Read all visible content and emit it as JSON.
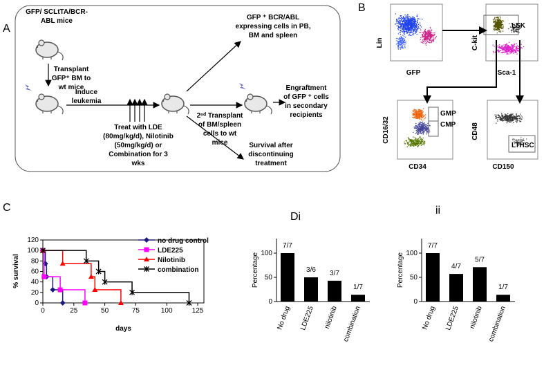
{
  "panel_a": {
    "label": "A",
    "mice": [
      "GFP/ SCLtTA/BCR-",
      "ABL mice"
    ],
    "transplant": [
      "Transplant",
      "GFP⁺ BM to",
      "wt mice"
    ],
    "induce": [
      "Induce",
      "leukemia"
    ],
    "treatment": [
      "Treat with LDE",
      "(80mg/kg/d), Nilotinib",
      "(50mg/kg/d) or",
      "Combination for 3",
      "wks"
    ],
    "expressing": [
      "GFP ⁺ BCR/ABL",
      "expressing cells in PB,",
      "BM and spleen"
    ],
    "second_transplant": [
      "2ⁿᵈ Transplant",
      "of BM/spleen",
      "cells to wt",
      "mice"
    ],
    "engraftment": [
      "Engraftment",
      "of GFP ⁺ cells",
      "in secondary",
      "recipients"
    ],
    "survival": [
      "Survival after",
      "discontinuing",
      "treatment"
    ]
  },
  "panel_b": {
    "label": "B",
    "plots": [
      {
        "y_label": "Lin",
        "x_label": "GFP"
      },
      {
        "y_label": "C-kit",
        "x_label": "Sca-1",
        "gates": [
          "LSK"
        ]
      },
      {
        "y_label": "CD16/32",
        "x_label": "CD34",
        "gates": [
          "GMP",
          "CMP"
        ]
      },
      {
        "y_label": "CD48",
        "x_label": "CD150",
        "gates": [
          "LTHSC"
        ]
      }
    ]
  },
  "chart_data": [
    {
      "type": "line",
      "step": true,
      "label": "C",
      "x_label": "days",
      "y_label": "% survival",
      "xlim": [
        0,
        130
      ],
      "xticks": [
        0,
        25,
        50,
        75,
        100,
        125
      ],
      "ylim": [
        0,
        120
      ],
      "yticks": [
        0,
        20,
        40,
        60,
        80,
        100,
        120
      ],
      "legend": "upper right",
      "series": [
        {
          "name": "no drug control",
          "color": "#1a1a80",
          "marker": "diamond",
          "x": [
            0,
            2,
            3,
            8,
            16
          ],
          "values": [
            100,
            75,
            50,
            25,
            0
          ]
        },
        {
          "name": "LDE225",
          "color": "#ff00ff",
          "marker": "square",
          "x": [
            0,
            1,
            14,
            34
          ],
          "values": [
            100,
            50,
            25,
            0
          ]
        },
        {
          "name": "Nilotinib",
          "color": "#ff0000",
          "marker": "triangle",
          "x": [
            0,
            16,
            39,
            42,
            63
          ],
          "values": [
            100,
            75,
            50,
            25,
            0
          ]
        },
        {
          "name": "combination",
          "color": "#000000",
          "marker": "x",
          "x": [
            0,
            35,
            45,
            50,
            72,
            118
          ],
          "values": [
            100,
            80,
            60,
            40,
            20,
            0
          ]
        }
      ]
    },
    {
      "type": "bar",
      "title": "Di",
      "y_label": "Percentage",
      "color": "#000000",
      "categories": [
        "No drug",
        "LDE225",
        "nilotinib",
        "combination"
      ],
      "values": [
        100,
        50,
        43,
        14
      ],
      "value_labels": [
        "7/7",
        "3/6",
        "3/7",
        "1/7"
      ],
      "ylim": [
        0,
        130
      ],
      "yticks": [
        0,
        50,
        100
      ]
    },
    {
      "type": "bar",
      "title": "ii",
      "y_label": "Percentage",
      "color": "#000000",
      "categories": [
        "No drug",
        "LDE225",
        "nilotinib",
        "combination"
      ],
      "values": [
        100,
        57,
        71,
        14
      ],
      "value_labels": [
        "7/7",
        "4/7",
        "5/7",
        "1/7"
      ],
      "ylim": [
        0,
        130
      ],
      "yticks": [
        0,
        50,
        100
      ]
    }
  ]
}
